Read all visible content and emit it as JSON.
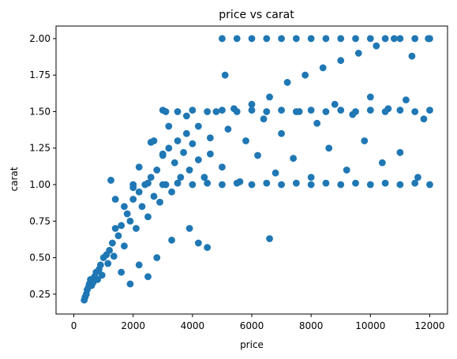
{
  "chart_data": {
    "type": "scatter",
    "title": "price vs carat",
    "xlabel": "price",
    "ylabel": "carat",
    "xlim": [
      -600,
      12600
    ],
    "ylim": [
      0.114,
      2.086
    ],
    "xticks": [
      0,
      2000,
      4000,
      6000,
      8000,
      10000,
      12000
    ],
    "yticks": [
      0.25,
      0.5,
      0.75,
      1.0,
      1.25,
      1.5,
      1.75,
      2.0
    ],
    "xtick_labels": [
      "0",
      "2000",
      "4000",
      "6000",
      "8000",
      "10000",
      "12000"
    ],
    "ytick_labels": [
      "0.25",
      "0.50",
      "0.75",
      "1.00",
      "1.25",
      "1.50",
      "1.75",
      "2.00"
    ],
    "grid": false,
    "marker_color": "#1f77b4",
    "series": [
      {
        "points": [
          [
            350,
            0.21
          ],
          [
            380,
            0.23
          ],
          [
            420,
            0.25
          ],
          [
            450,
            0.28
          ],
          [
            500,
            0.3
          ],
          [
            520,
            0.32
          ],
          [
            560,
            0.35
          ],
          [
            600,
            0.31
          ],
          [
            650,
            0.33
          ],
          [
            700,
            0.37
          ],
          [
            750,
            0.4
          ],
          [
            800,
            0.35
          ],
          [
            850,
            0.42
          ],
          [
            900,
            0.45
          ],
          [
            950,
            0.38
          ],
          [
            1000,
            0.5
          ],
          [
            1100,
            0.52
          ],
          [
            1150,
            0.46
          ],
          [
            1200,
            0.55
          ],
          [
            1300,
            0.6
          ],
          [
            1350,
            0.51
          ],
          [
            1400,
            0.7
          ],
          [
            1500,
            0.65
          ],
          [
            1600,
            0.72
          ],
          [
            1700,
            0.58
          ],
          [
            1800,
            0.8
          ],
          [
            1900,
            0.75
          ],
          [
            2000,
            0.9
          ],
          [
            2100,
            0.7
          ],
          [
            2200,
            0.95
          ],
          [
            2300,
            0.85
          ],
          [
            2400,
            1.0
          ],
          [
            2500,
            0.78
          ],
          [
            2600,
            1.05
          ],
          [
            2700,
            0.92
          ],
          [
            2800,
            1.1
          ],
          [
            2900,
            0.88
          ],
          [
            3000,
            1.2
          ],
          [
            3100,
            1.0
          ],
          [
            3200,
            1.25
          ],
          [
            3300,
            0.95
          ],
          [
            3400,
            1.15
          ],
          [
            3500,
            1.3
          ],
          [
            3600,
            1.05
          ],
          [
            3700,
            1.22
          ],
          [
            3800,
            1.35
          ],
          [
            3900,
            1.1
          ],
          [
            4000,
            1.28
          ],
          [
            4200,
            1.4
          ],
          [
            4400,
            1.05
          ],
          [
            4600,
            1.32
          ],
          [
            4800,
            1.5
          ],
          [
            5000,
            1.12
          ],
          [
            5200,
            1.38
          ],
          [
            5400,
            1.52
          ],
          [
            5600,
            1.02
          ],
          [
            5800,
            1.3
          ],
          [
            6000,
            1.55
          ],
          [
            6200,
            1.2
          ],
          [
            6400,
            1.45
          ],
          [
            6600,
            1.6
          ],
          [
            6800,
            1.08
          ],
          [
            7000,
            1.35
          ],
          [
            7200,
            1.7
          ],
          [
            7400,
            1.18
          ],
          [
            7600,
            1.5
          ],
          [
            7800,
            1.75
          ],
          [
            8000,
            1.05
          ],
          [
            8200,
            1.42
          ],
          [
            8400,
            1.8
          ],
          [
            8600,
            1.25
          ],
          [
            8800,
            1.55
          ],
          [
            9000,
            1.85
          ],
          [
            9200,
            1.1
          ],
          [
            9400,
            1.48
          ],
          [
            9600,
            1.9
          ],
          [
            9800,
            1.3
          ],
          [
            10000,
            1.6
          ],
          [
            10200,
            1.95
          ],
          [
            10400,
            1.15
          ],
          [
            10600,
            1.52
          ],
          [
            10800,
            2.0
          ],
          [
            11000,
            1.22
          ],
          [
            11200,
            1.58
          ],
          [
            11400,
            1.88
          ],
          [
            11600,
            1.05
          ],
          [
            11800,
            1.45
          ],
          [
            11950,
            2.0
          ],
          [
            5000,
            2.0
          ],
          [
            5500,
            2.0
          ],
          [
            6000,
            2.0
          ],
          [
            6500,
            2.0
          ],
          [
            7000,
            2.0
          ],
          [
            7500,
            2.0
          ],
          [
            8000,
            2.0
          ],
          [
            8500,
            2.0
          ],
          [
            9000,
            2.0
          ],
          [
            9500,
            2.0
          ],
          [
            10000,
            2.0
          ],
          [
            10500,
            2.0
          ],
          [
            11000,
            2.0
          ],
          [
            11500,
            2.0
          ],
          [
            12000,
            2.0
          ],
          [
            3000,
            1.51
          ],
          [
            3500,
            1.5
          ],
          [
            4000,
            1.51
          ],
          [
            4500,
            1.5
          ],
          [
            5000,
            1.51
          ],
          [
            5500,
            1.5
          ],
          [
            6000,
            1.51
          ],
          [
            6500,
            1.5
          ],
          [
            7000,
            1.51
          ],
          [
            7500,
            1.5
          ],
          [
            8000,
            1.51
          ],
          [
            8500,
            1.5
          ],
          [
            9000,
            1.51
          ],
          [
            9500,
            1.5
          ],
          [
            10000,
            1.51
          ],
          [
            10500,
            1.5
          ],
          [
            11000,
            1.51
          ],
          [
            11500,
            1.5
          ],
          [
            12000,
            1.51
          ],
          [
            2000,
            1.0
          ],
          [
            2500,
            1.01
          ],
          [
            3000,
            1.0
          ],
          [
            3500,
            1.01
          ],
          [
            4000,
            1.0
          ],
          [
            4500,
            1.01
          ],
          [
            5000,
            1.0
          ],
          [
            5500,
            1.01
          ],
          [
            6000,
            1.0
          ],
          [
            6500,
            1.01
          ],
          [
            7000,
            1.0
          ],
          [
            7500,
            1.01
          ],
          [
            8000,
            1.0
          ],
          [
            8500,
            1.01
          ],
          [
            9000,
            1.0
          ],
          [
            9500,
            1.01
          ],
          [
            10000,
            1.0
          ],
          [
            10500,
            1.01
          ],
          [
            11000,
            1.0
          ],
          [
            11500,
            1.01
          ],
          [
            12000,
            1.0
          ],
          [
            6600,
            0.63
          ],
          [
            4200,
            0.6
          ],
          [
            4500,
            0.57
          ],
          [
            2500,
            0.37
          ],
          [
            1900,
            0.32
          ],
          [
            2800,
            0.5
          ],
          [
            3300,
            0.62
          ],
          [
            3900,
            0.7
          ],
          [
            2200,
            0.45
          ],
          [
            1600,
            0.4
          ],
          [
            1250,
            1.03
          ],
          [
            1400,
            0.9
          ],
          [
            1700,
            0.85
          ],
          [
            2000,
            0.98
          ],
          [
            2200,
            1.12
          ],
          [
            2600,
            1.29
          ],
          [
            2700,
            1.3
          ],
          [
            3000,
            1.21
          ],
          [
            3100,
            1.5
          ],
          [
            3200,
            1.4
          ],
          [
            3800,
            1.47
          ],
          [
            4200,
            1.17
          ],
          [
            4600,
            1.21
          ],
          [
            5100,
            1.75
          ]
        ]
      }
    ]
  }
}
